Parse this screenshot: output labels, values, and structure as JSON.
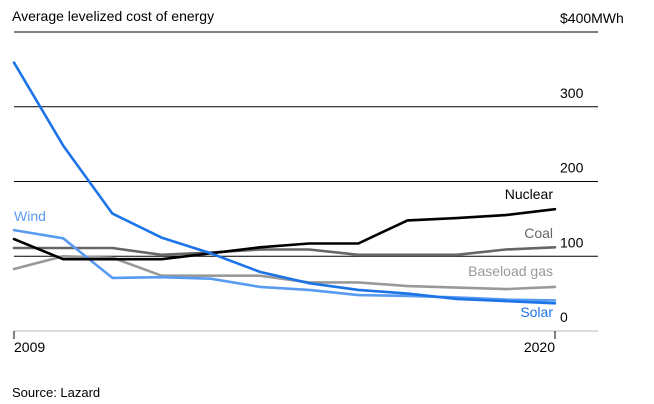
{
  "chart_data": {
    "type": "line",
    "title": "Average levelized cost of energy",
    "source": "Source: Lazard",
    "x": [
      2009,
      2010,
      2011,
      2012,
      2013,
      2014,
      2015,
      2016,
      2017,
      2018,
      2019,
      2020
    ],
    "x_tick_labels": [
      "2009",
      "2020"
    ],
    "ylim": [
      0,
      400
    ],
    "y_ticks": [
      {
        "value": 0,
        "label": "0"
      },
      {
        "value": 100,
        "label": "100"
      },
      {
        "value": 200,
        "label": "200"
      },
      {
        "value": 300,
        "label": "300"
      },
      {
        "value": 400,
        "label": "$400MWh"
      }
    ],
    "series": [
      {
        "name": "Nuclear",
        "color": "#000000",
        "values": [
          123,
          96,
          96,
          96,
          104,
          112,
          117,
          117,
          148,
          151,
          155,
          163
        ]
      },
      {
        "name": "Coal",
        "color": "#666666",
        "values": [
          111,
          111,
          111,
          102,
          105,
          109,
          109,
          102,
          102,
          102,
          109,
          112
        ]
      },
      {
        "name": "Baseload gas",
        "color": "#999999",
        "values": [
          83,
          100,
          98,
          74,
          74,
          74,
          65,
          65,
          60,
          58,
          56,
          59
        ]
      },
      {
        "name": "Wind",
        "color": "#5a9bf2",
        "values": [
          135,
          124,
          71,
          72,
          70,
          59,
          55,
          48,
          47,
          45,
          42,
          41
        ]
      },
      {
        "name": "Solar",
        "color": "#1d74e8",
        "values": [
          359,
          248,
          157,
          125,
          104,
          79,
          64,
          55,
          50,
          43,
          40,
          37
        ]
      }
    ],
    "grid": "horizontal"
  }
}
